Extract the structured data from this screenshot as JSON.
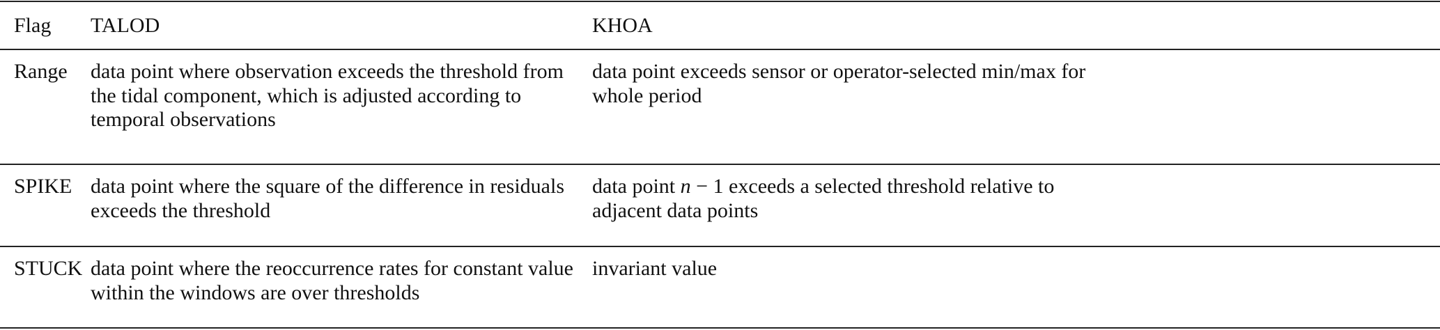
{
  "table": {
    "headers": [
      "Flag",
      "TALOD",
      "KHOA"
    ],
    "rows": [
      {
        "flag": "Range",
        "talod": [
          "data point where observation exceeds the threshold from",
          "the tidal component, which is adjusted according to",
          "temporal observations"
        ],
        "khoa": [
          "data point exceeds sensor or operator-selected min/max for",
          "whole period"
        ]
      },
      {
        "flag": "SPIKE",
        "talod": [
          "data point where the square of the difference in residuals",
          "exceeds the threshold"
        ],
        "khoa_pre": "data point ",
        "khoa_math": "n",
        "khoa_post": " − 1 exceeds a selected threshold relative to",
        "khoa_line2": "adjacent data points"
      },
      {
        "flag": "STUCK",
        "talod": [
          "data point where the reoccurrence rates for constant value",
          "within the windows are over thresholds"
        ],
        "khoa": [
          "invariant value"
        ]
      }
    ]
  }
}
